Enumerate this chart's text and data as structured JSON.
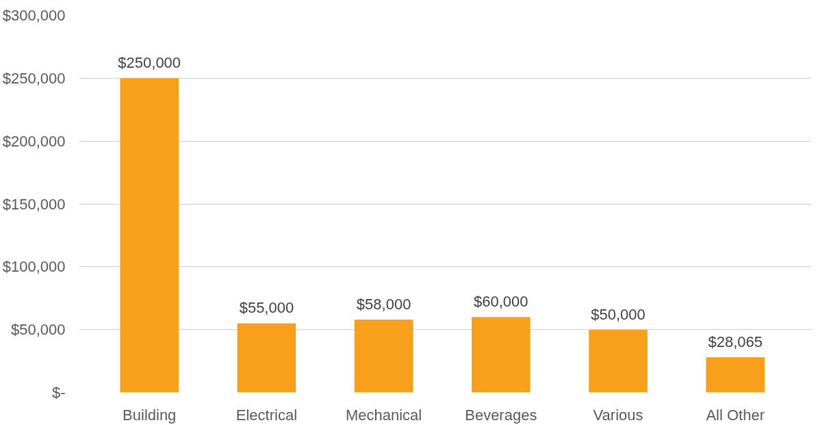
{
  "chart_data": {
    "type": "bar",
    "categories": [
      "Building",
      "Electrical",
      "Mechanical",
      "Beverages",
      "Various",
      "All Other"
    ],
    "values": [
      250000,
      55000,
      58000,
      60000,
      50000,
      28065
    ],
    "color": "#f8a01c",
    "value_labels": [
      "$250,000",
      "$55,000",
      "$58,000",
      "$60,000",
      "$50,000",
      "$28,065"
    ],
    "ylim": [
      0,
      300000
    ],
    "yticks": [
      {
        "value": 0,
        "label": "$-"
      },
      {
        "value": 50000,
        "label": "$50,000"
      },
      {
        "value": 100000,
        "label": "$100,000"
      },
      {
        "value": 150000,
        "label": "$150,000"
      },
      {
        "value": 200000,
        "label": "$200,000"
      },
      {
        "value": 250000,
        "label": "$250,000"
      },
      {
        "value": 300000,
        "label": "$300,000"
      }
    ],
    "grid": "y"
  }
}
